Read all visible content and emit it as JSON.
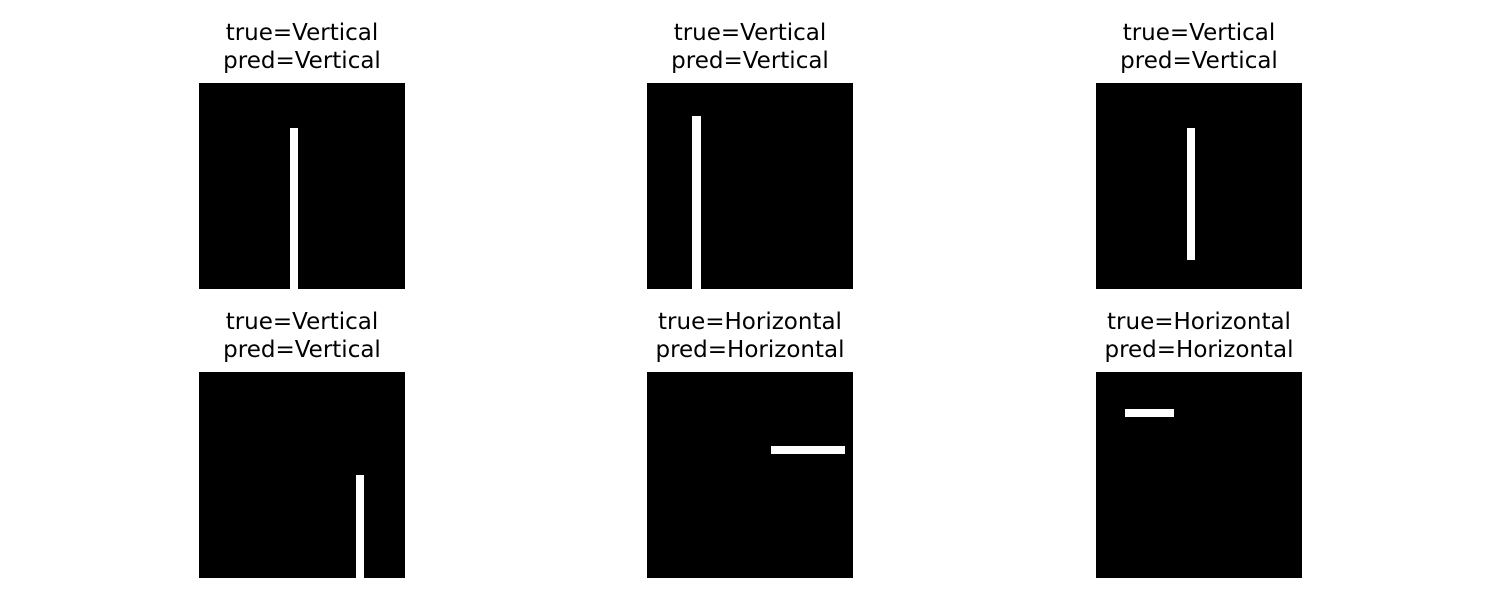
{
  "panels": [
    {
      "true_text": "true=Vertical",
      "pred_text": "pred=Vertical"
    },
    {
      "true_text": "true=Vertical",
      "pred_text": "pred=Vertical"
    },
    {
      "true_text": "true=Vertical",
      "pred_text": "pred=Vertical"
    },
    {
      "true_text": "true=Vertical",
      "pred_text": "pred=Vertical"
    },
    {
      "true_text": "true=Horizontal",
      "pred_text": "pred=Horizontal"
    },
    {
      "true_text": "true=Horizontal",
      "pred_text": "pred=Horizontal"
    }
  ],
  "colors": {
    "background": "#000000",
    "line": "#ffffff"
  }
}
